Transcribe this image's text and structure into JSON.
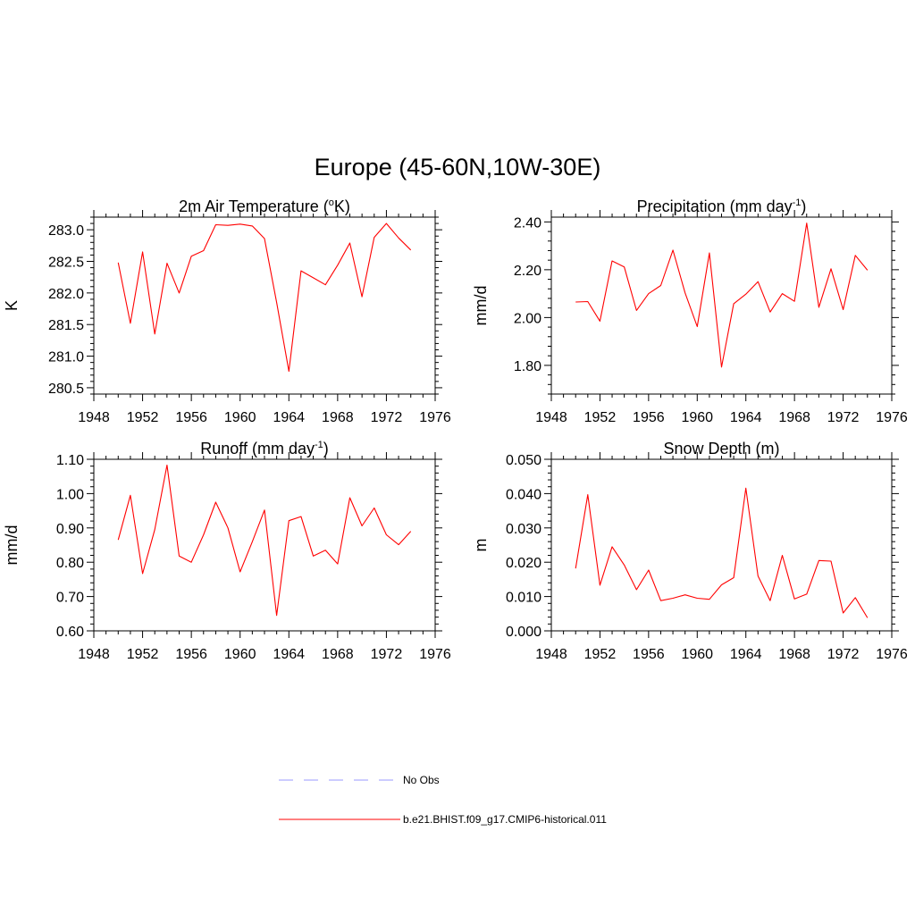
{
  "figure": {
    "title": "Europe (45-60N,10W-30E)"
  },
  "legend": [
    {
      "label": "No Obs",
      "color": "#9999ff",
      "dash": true
    },
    {
      "label": "b.e21.BHIST.f09_g17.CMIP6-historical.011",
      "color": "#ff0000",
      "dash": false
    }
  ],
  "chart_data": [
    {
      "type": "line",
      "title": "2m Air Temperature (°K)",
      "title_parts": {
        "pre": "2m Air Temperature (",
        "sup": "o",
        "post": "K)"
      },
      "ylabel": "K",
      "xlim": [
        1948,
        1976
      ],
      "x_ticks": [
        "1948",
        "1952",
        "1956",
        "1960",
        "1964",
        "1968",
        "1972",
        "1976"
      ],
      "ylim": [
        280.4,
        283.2
      ],
      "y_ticks": [
        "280.5",
        "281.0",
        "281.5",
        "282.0",
        "282.5",
        "283.0"
      ],
      "series": [
        {
          "color": "#ff0000",
          "x": [
            1950,
            1951,
            1952,
            1953,
            1954,
            1955,
            1956,
            1957,
            1958,
            1959,
            1960,
            1961,
            1962,
            1963,
            1964,
            1965,
            1966,
            1967,
            1968,
            1969,
            1970,
            1971,
            1972,
            1973,
            1974
          ],
          "values": [
            282.48,
            281.52,
            282.65,
            281.35,
            282.47,
            282.0,
            282.58,
            282.67,
            283.08,
            283.07,
            283.09,
            283.06,
            282.86,
            281.85,
            280.76,
            282.35,
            282.24,
            282.13,
            282.44,
            282.79,
            281.94,
            282.88,
            283.1,
            282.87,
            282.68
          ]
        }
      ]
    },
    {
      "type": "line",
      "title": "Precipitation (mm day-1)",
      "title_parts": {
        "pre": "Precipitation (mm day",
        "sup": "-1",
        "post": ")"
      },
      "ylabel": "mm/d",
      "xlim": [
        1948,
        1976
      ],
      "x_ticks": [
        "1948",
        "1952",
        "1956",
        "1960",
        "1964",
        "1968",
        "1972",
        "1976"
      ],
      "ylim": [
        1.68,
        2.42
      ],
      "y_ticks": [
        "1.80",
        "2.00",
        "2.20",
        "2.40"
      ],
      "series": [
        {
          "color": "#ff0000",
          "x": [
            1950,
            1951,
            1952,
            1953,
            1954,
            1955,
            1956,
            1957,
            1958,
            1959,
            1960,
            1961,
            1962,
            1963,
            1964,
            1965,
            1966,
            1967,
            1968,
            1969,
            1970,
            1971,
            1972,
            1973,
            1974
          ],
          "values": [
            2.065,
            2.067,
            1.985,
            2.237,
            2.212,
            2.03,
            2.1,
            2.134,
            2.282,
            2.103,
            1.962,
            2.27,
            1.793,
            2.058,
            2.098,
            2.15,
            2.023,
            2.1,
            2.068,
            2.395,
            2.043,
            2.204,
            2.033,
            2.26,
            2.198
          ]
        }
      ]
    },
    {
      "type": "line",
      "title": "Runoff (mm day-1)",
      "title_parts": {
        "pre": "Runoff (mm day",
        "sup": "-1",
        "post": ")"
      },
      "ylabel": "mm/d",
      "xlim": [
        1948,
        1976
      ],
      "x_ticks": [
        "1948",
        "1952",
        "1956",
        "1960",
        "1964",
        "1968",
        "1972",
        "1976"
      ],
      "ylim": [
        0.6,
        1.1
      ],
      "y_ticks": [
        "0.60",
        "0.70",
        "0.80",
        "0.90",
        "1.00",
        "1.10"
      ],
      "series": [
        {
          "color": "#ff0000",
          "x": [
            1950,
            1951,
            1952,
            1953,
            1954,
            1955,
            1956,
            1957,
            1958,
            1959,
            1960,
            1961,
            1962,
            1963,
            1964,
            1965,
            1966,
            1967,
            1968,
            1969,
            1970,
            1971,
            1972,
            1973,
            1974
          ],
          "values": [
            0.865,
            0.995,
            0.767,
            0.895,
            1.083,
            0.818,
            0.8,
            0.88,
            0.975,
            0.9,
            0.772,
            0.86,
            0.952,
            0.645,
            0.921,
            0.933,
            0.818,
            0.835,
            0.795,
            0.988,
            0.906,
            0.958,
            0.88,
            0.851,
            0.89
          ]
        }
      ]
    },
    {
      "type": "line",
      "title": "Snow Depth (m)",
      "title_parts": {
        "pre": "Snow Depth (m)",
        "sup": "",
        "post": ""
      },
      "ylabel": "m",
      "xlim": [
        1948,
        1976
      ],
      "x_ticks": [
        "1948",
        "1952",
        "1956",
        "1960",
        "1964",
        "1968",
        "1972",
        "1976"
      ],
      "ylim": [
        0.0,
        0.05
      ],
      "y_ticks": [
        "0.000",
        "0.010",
        "0.020",
        "0.030",
        "0.040",
        "0.050"
      ],
      "series": [
        {
          "color": "#ff0000",
          "x": [
            1950,
            1951,
            1952,
            1953,
            1954,
            1955,
            1956,
            1957,
            1958,
            1959,
            1960,
            1961,
            1962,
            1963,
            1964,
            1965,
            1966,
            1967,
            1968,
            1969,
            1970,
            1971,
            1972,
            1973,
            1974
          ],
          "values": [
            0.0182,
            0.0397,
            0.0133,
            0.0245,
            0.0192,
            0.012,
            0.0177,
            0.0088,
            0.0095,
            0.0105,
            0.0095,
            0.0092,
            0.0134,
            0.0155,
            0.0416,
            0.016,
            0.0088,
            0.022,
            0.0093,
            0.0107,
            0.0205,
            0.0203,
            0.0052,
            0.0097,
            0.0038
          ]
        }
      ]
    }
  ]
}
